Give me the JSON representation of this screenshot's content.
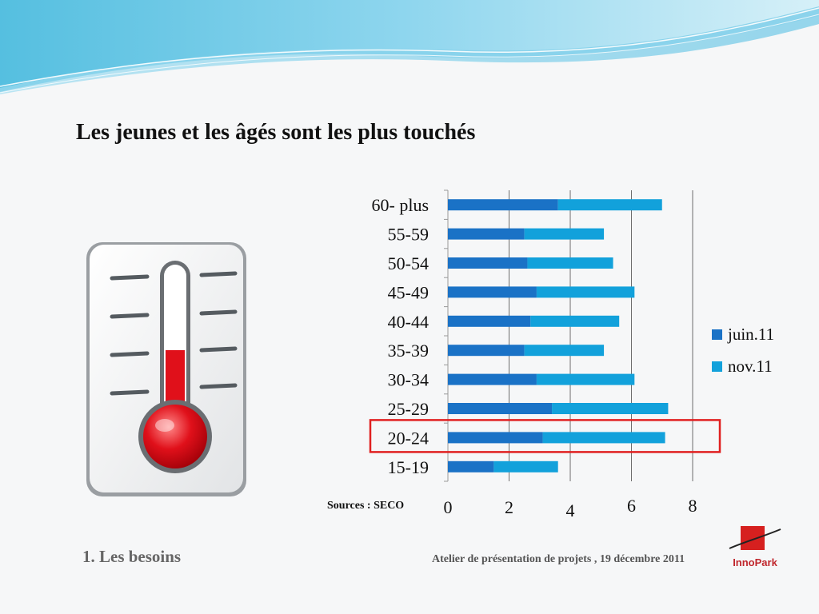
{
  "slide": {
    "title": "Les jeunes et les âgés sont les plus touchés",
    "sources": "Sources : SECO",
    "footer_left": "1. Les besoins",
    "footer_center": "Atelier de présentation de projets , 19 décembre 2011",
    "logo_text": "InnoPark",
    "thermometer_icon": "thermometer-icon"
  },
  "colors": {
    "juin": "#1a72c6",
    "nov": "#12a1db",
    "highlight": "#e02020"
  },
  "chart_data": {
    "type": "bar",
    "orientation": "horizontal",
    "stacked": true,
    "categories": [
      "15-19",
      "20-24",
      "25-29",
      "30-34",
      "35-39",
      "40-44",
      "45-49",
      "50-54",
      "55-59",
      "60- plus"
    ],
    "series": [
      {
        "name": "juin.11",
        "values": [
          1.5,
          3.1,
          3.4,
          2.9,
          2.5,
          2.7,
          2.9,
          2.6,
          2.5,
          3.6
        ]
      },
      {
        "name": "nov.11",
        "values": [
          2.1,
          4.0,
          3.8,
          3.2,
          2.6,
          2.9,
          3.2,
          2.8,
          2.6,
          3.4
        ]
      }
    ],
    "x_ticks": [
      "0",
      "2",
      "4",
      "6",
      "8"
    ],
    "xlim": [
      0,
      8
    ],
    "grid": "vertical",
    "legend_position": "right",
    "highlighted_category": "20-24",
    "title": "",
    "xlabel": "",
    "ylabel": ""
  }
}
